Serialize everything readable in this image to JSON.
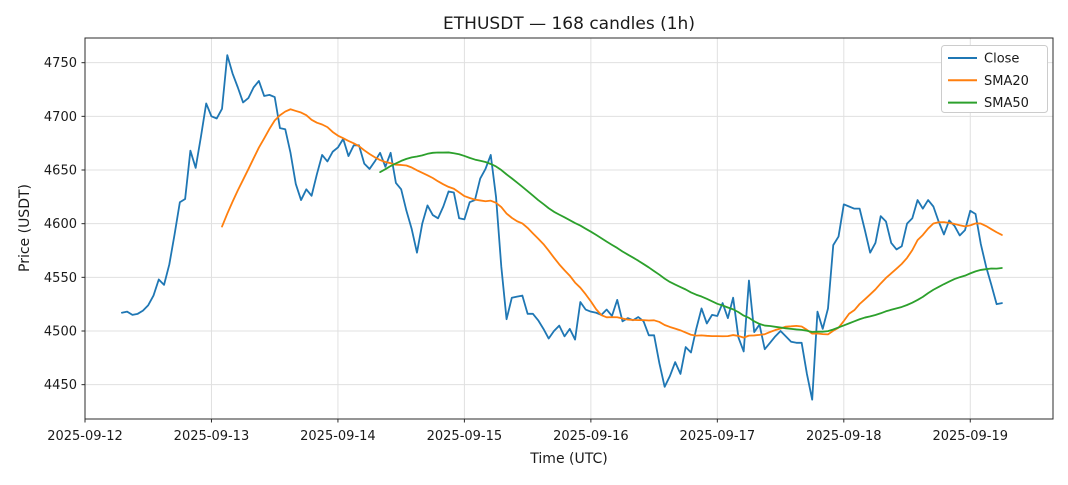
{
  "chart_data": {
    "type": "line",
    "title": "ETHUSDT — 168 candles (1h)",
    "xlabel": "Time (UTC)",
    "ylabel": "Price (USDT)",
    "ticker": "ETHUSDT",
    "candle_count": 168,
    "interval": "1h",
    "grid": true,
    "legend_position": "upper right",
    "x_tick_labels": [
      "2025-09-12",
      "2025-09-13",
      "2025-09-14",
      "2025-09-15",
      "2025-09-16",
      "2025-09-17",
      "2025-09-18",
      "2025-09-19"
    ],
    "x_tick_hours": [
      0,
      24,
      48,
      72,
      96,
      120,
      144,
      168
    ],
    "y_ticks": [
      4450,
      4500,
      4550,
      4600,
      4650,
      4700,
      4750
    ],
    "ylim": [
      4418,
      4773
    ],
    "xlim_hours": [
      0,
      183.7
    ],
    "first_candle_hour_offset": 7,
    "interval_hours": 1,
    "series": [
      {
        "name": "Close",
        "color": "#1f77b4",
        "values": [
          4517,
          4518,
          4515,
          4516,
          4519,
          4524,
          4533,
          4548,
          4543,
          4562,
          4590,
          4620,
          4623,
          4668,
          4652,
          4681,
          4712,
          4700,
          4698,
          4707,
          4757,
          4740,
          4727,
          4713,
          4717,
          4727,
          4733,
          4719,
          4720,
          4718,
          4689,
          4688,
          4666,
          4637,
          4622,
          4632,
          4626,
          4646,
          4664,
          4658,
          4667,
          4671,
          4679,
          4663,
          4673,
          4673,
          4656,
          4651,
          4658,
          4666,
          4653,
          4666,
          4638,
          4632,
          4612,
          4595,
          4573,
          4600,
          4617,
          4608,
          4605,
          4616,
          4630,
          4629,
          4605,
          4604,
          4620,
          4622,
          4642,
          4651,
          4664,
          4625,
          4560,
          4511,
          4531,
          4532,
          4533,
          4516,
          4516,
          4510,
          4502,
          4493,
          4500,
          4505,
          4495,
          4502,
          4492,
          4527,
          4520,
          4518,
          4517,
          4515,
          4520,
          4514,
          4529,
          4509,
          4512,
          4510,
          4513,
          4509,
          4496,
          4496,
          4470,
          4448,
          4458,
          4471,
          4460,
          4485,
          4480,
          4502,
          4521,
          4507,
          4515,
          4514,
          4526,
          4512,
          4531,
          4494,
          4481,
          4547,
          4499,
          4506,
          4483,
          4489,
          4495,
          4500,
          4495,
          4490,
          4489,
          4489,
          4460,
          4436,
          4518,
          4502,
          4521,
          4580,
          4588,
          4618,
          4616,
          4614,
          4614,
          4594,
          4573,
          4582,
          4607,
          4602,
          4582,
          4576,
          4579,
          4600,
          4605,
          4622,
          4614,
          4622,
          4616,
          4602,
          4590,
          4603,
          4598,
          4589,
          4594,
          4612,
          4609,
          4581,
          4560,
          4543,
          4525,
          4526
        ]
      },
      {
        "name": "SMA20",
        "color": "#ff7f0e",
        "derived_from": "Close",
        "derived": "sma",
        "window": 20
      },
      {
        "name": "SMA50",
        "color": "#2ca02c",
        "derived_from": "Close",
        "derived": "sma",
        "window": 50
      }
    ],
    "legend": [
      {
        "label": "Close",
        "color": "#1f77b4"
      },
      {
        "label": "SMA20",
        "color": "#ff7f0e"
      },
      {
        "label": "SMA50",
        "color": "#2ca02c"
      }
    ],
    "style": {
      "grid_color": "#e0e0e0",
      "spine_color": "#2b2b2b",
      "legend_border_color": "#cccccc",
      "background": "#ffffff"
    }
  }
}
